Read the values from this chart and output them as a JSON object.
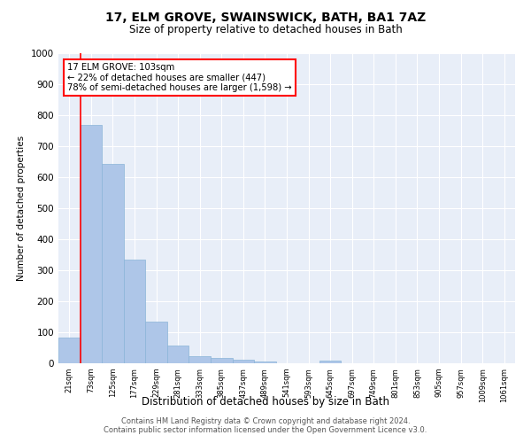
{
  "title": "17, ELM GROVE, SWAINSWICK, BATH, BA1 7AZ",
  "subtitle": "Size of property relative to detached houses in Bath",
  "xlabel": "Distribution of detached houses by size in Bath",
  "ylabel": "Number of detached properties",
  "categories": [
    "21sqm",
    "73sqm",
    "125sqm",
    "177sqm",
    "229sqm",
    "281sqm",
    "333sqm",
    "385sqm",
    "437sqm",
    "489sqm",
    "541sqm",
    "593sqm",
    "645sqm",
    "697sqm",
    "749sqm",
    "801sqm",
    "853sqm",
    "905sqm",
    "957sqm",
    "1009sqm",
    "1061sqm"
  ],
  "values": [
    83,
    770,
    643,
    333,
    133,
    58,
    23,
    17,
    11,
    7,
    0,
    0,
    8,
    0,
    0,
    0,
    0,
    0,
    0,
    0,
    0
  ],
  "bar_color": "#aec6e8",
  "bar_edge_color": "#8ab4d8",
  "background_color": "#ffffff",
  "plot_bg_color": "#e8eef8",
  "grid_color": "#ffffff",
  "ylim": [
    0,
    1000
  ],
  "yticks": [
    0,
    100,
    200,
    300,
    400,
    500,
    600,
    700,
    800,
    900,
    1000
  ],
  "redline_index": 1,
  "annotation_title": "17 ELM GROVE: 103sqm",
  "annotation_line1": "← 22% of detached houses are smaller (447)",
  "annotation_line2": "78% of semi-detached houses are larger (1,598) →",
  "footer_line1": "Contains HM Land Registry data © Crown copyright and database right 2024.",
  "footer_line2": "Contains public sector information licensed under the Open Government Licence v3.0."
}
